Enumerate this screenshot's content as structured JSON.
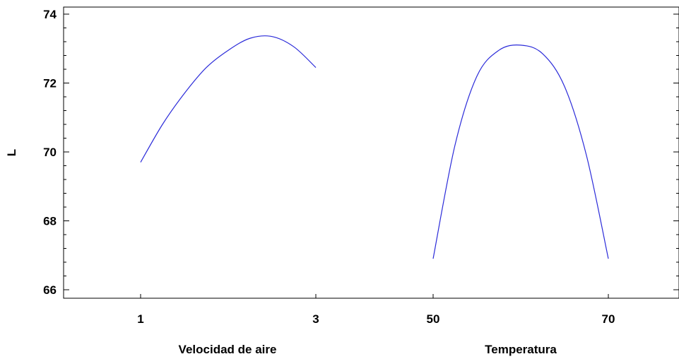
{
  "chart_data": {
    "type": "line",
    "ylabel": "L",
    "ylim": [
      65.8,
      74.2
    ],
    "yticks": [
      66,
      68,
      70,
      72,
      74
    ],
    "panels": [
      {
        "xlabel": "Velocidad de aire",
        "xticks": [
          "1",
          "3"
        ],
        "xtick_values": [
          1,
          3
        ],
        "series": [
          {
            "x": [
              1.0,
              1.25,
              1.5,
              1.75,
              2.0,
              2.25,
              2.5,
              2.75,
              3.0
            ],
            "y": [
              69.7,
              70.8,
              71.7,
              72.45,
              72.95,
              73.3,
              73.35,
              73.05,
              72.45
            ]
          }
        ]
      },
      {
        "xlabel": "Temperatura",
        "xticks": [
          "50",
          "70"
        ],
        "xtick_values": [
          50,
          70
        ],
        "series": [
          {
            "x": [
              50,
              52.5,
              55,
              57.5,
              60,
              62.5,
              65,
              67.5,
              70
            ],
            "y": [
              66.9,
              70.2,
              72.2,
              72.95,
              73.1,
              72.85,
              71.9,
              69.9,
              66.9
            ]
          }
        ]
      }
    ],
    "grid": false,
    "colors": {
      "curve": "#2b2bd9",
      "frame": "#000000"
    }
  }
}
